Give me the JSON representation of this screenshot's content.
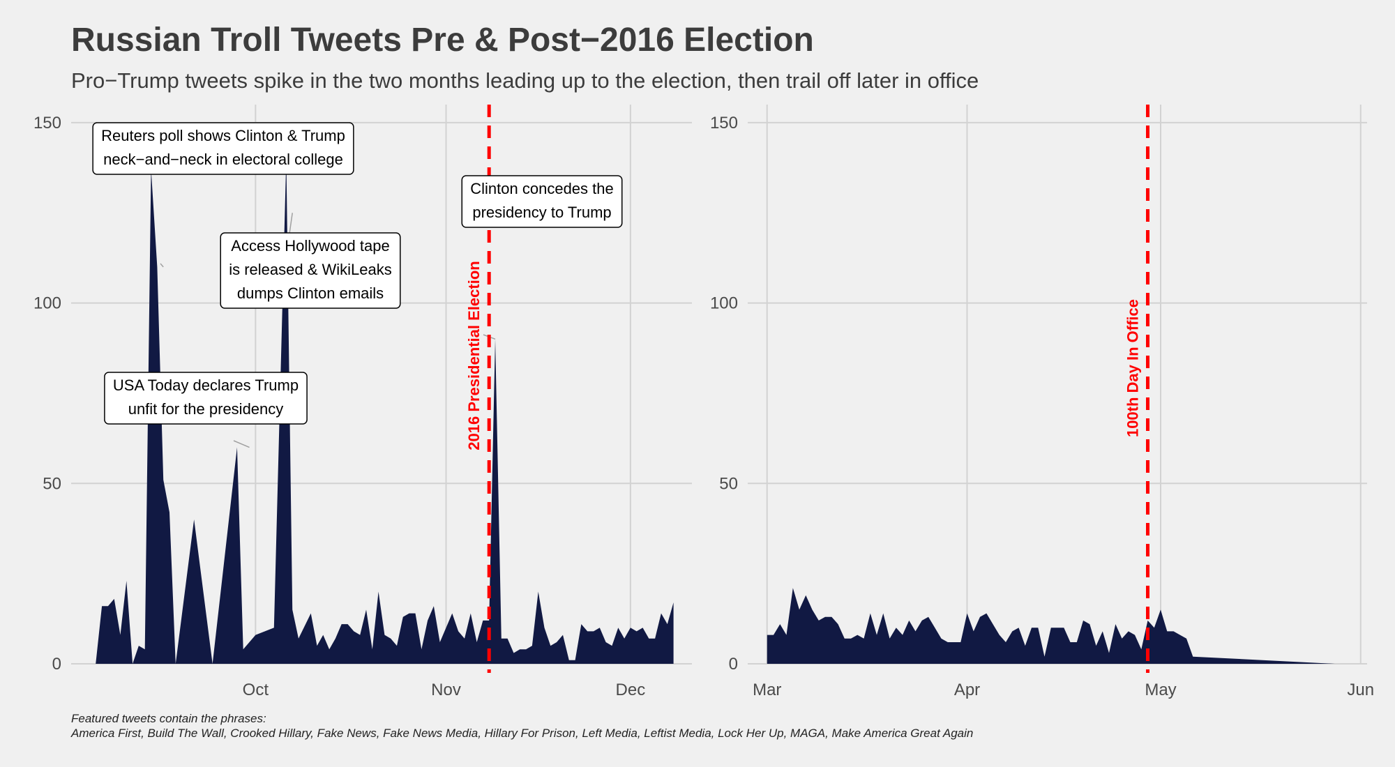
{
  "chart": {
    "title": "Russian Troll Tweets Pre & Post−2016 Election",
    "subtitle": "Pro−Trump tweets spike in the two months leading up to the election, then trail off later in office",
    "caption_line1": "Featured tweets contain the phrases:",
    "caption_line2": "America First, Build The Wall, Crooked Hillary, Fake News, Fake News Media, Hillary For Prison, Left Media, Leftist Media, Lock Her Up, MAGA, Make America Great Again",
    "colors": {
      "area": "#111943",
      "vline": "#ff0000",
      "grid": "#d2d2d2",
      "background": "#f0f0f0"
    }
  },
  "chart_data": [
    {
      "type": "area",
      "panel": "left",
      "x_type": "date",
      "xlim": [
        "2016-09-01",
        "2016-12-11"
      ],
      "ylim": [
        0,
        155
      ],
      "y_ticks": [
        0,
        50,
        100,
        150
      ],
      "x_ticks": [
        {
          "date": "2016-10-01",
          "label": "Oct"
        },
        {
          "date": "2016-11-01",
          "label": "Nov"
        },
        {
          "date": "2016-12-01",
          "label": "Dec"
        }
      ],
      "grid": true,
      "vlines": [
        {
          "date": "2016-11-08",
          "label": "2016 Presidential Election"
        }
      ],
      "annotations": [
        {
          "date": "2016-09-16",
          "y": 110,
          "lines": [
            "Reuters poll shows Clinton & Trump",
            "neck−and−neck in electoral college"
          ]
        },
        {
          "date": "2016-10-07",
          "y": 125,
          "lines": [
            "Access Hollywood tape",
            "is released & WikiLeaks",
            "dumps Clinton emails"
          ]
        },
        {
          "date": "2016-09-30",
          "y": 60,
          "lines": [
            "USA Today declares Trump",
            "unfit for the presidency"
          ]
        },
        {
          "date": "2016-11-09",
          "y": 90,
          "lines": [
            "Clinton concedes the",
            "presidency to Trump"
          ]
        }
      ],
      "points": [
        [
          "2016-09-05",
          0
        ],
        [
          "2016-09-06",
          16
        ],
        [
          "2016-09-07",
          16
        ],
        [
          "2016-09-08",
          18
        ],
        [
          "2016-09-09",
          8
        ],
        [
          "2016-09-10",
          23
        ],
        [
          "2016-09-11",
          0
        ],
        [
          "2016-09-12",
          5
        ],
        [
          "2016-09-13",
          4
        ],
        [
          "2016-09-14",
          137
        ],
        [
          "2016-09-15",
          110
        ],
        [
          "2016-09-16",
          51
        ],
        [
          "2016-09-17",
          42
        ],
        [
          "2016-09-18",
          0
        ],
        [
          "2016-09-21",
          40
        ],
        [
          "2016-09-24",
          0
        ],
        [
          "2016-09-28",
          60
        ],
        [
          "2016-09-29",
          4
        ],
        [
          "2016-10-01",
          8
        ],
        [
          "2016-10-04",
          10
        ],
        [
          "2016-10-06",
          140
        ],
        [
          "2016-10-07",
          15
        ],
        [
          "2016-10-08",
          7
        ],
        [
          "2016-10-10",
          14
        ],
        [
          "2016-10-11",
          5
        ],
        [
          "2016-10-12",
          8
        ],
        [
          "2016-10-13",
          4
        ],
        [
          "2016-10-14",
          7
        ],
        [
          "2016-10-15",
          11
        ],
        [
          "2016-10-16",
          11
        ],
        [
          "2016-10-17",
          9
        ],
        [
          "2016-10-18",
          8
        ],
        [
          "2016-10-19",
          15
        ],
        [
          "2016-10-20",
          4
        ],
        [
          "2016-10-21",
          20
        ],
        [
          "2016-10-22",
          8
        ],
        [
          "2016-10-23",
          7
        ],
        [
          "2016-10-24",
          5
        ],
        [
          "2016-10-25",
          13
        ],
        [
          "2016-10-26",
          14
        ],
        [
          "2016-10-27",
          14
        ],
        [
          "2016-10-28",
          4
        ],
        [
          "2016-10-29",
          12
        ],
        [
          "2016-10-30",
          16
        ],
        [
          "2016-10-31",
          6
        ],
        [
          "2016-11-01",
          10
        ],
        [
          "2016-11-02",
          14
        ],
        [
          "2016-11-03",
          9
        ],
        [
          "2016-11-04",
          7
        ],
        [
          "2016-11-05",
          14
        ],
        [
          "2016-11-06",
          6
        ],
        [
          "2016-11-07",
          12
        ],
        [
          "2016-11-08",
          12
        ],
        [
          "2016-11-09",
          90
        ],
        [
          "2016-11-10",
          7
        ],
        [
          "2016-11-11",
          7
        ],
        [
          "2016-11-12",
          3
        ],
        [
          "2016-11-13",
          4
        ],
        [
          "2016-11-14",
          4
        ],
        [
          "2016-11-15",
          5
        ],
        [
          "2016-11-16",
          20
        ],
        [
          "2016-11-17",
          10
        ],
        [
          "2016-11-18",
          5
        ],
        [
          "2016-11-19",
          6
        ],
        [
          "2016-11-20",
          8
        ],
        [
          "2016-11-21",
          1
        ],
        [
          "2016-11-22",
          1
        ],
        [
          "2016-11-23",
          11
        ],
        [
          "2016-11-24",
          9
        ],
        [
          "2016-11-25",
          9
        ],
        [
          "2016-11-26",
          10
        ],
        [
          "2016-11-27",
          6
        ],
        [
          "2016-11-28",
          5
        ],
        [
          "2016-11-29",
          10
        ],
        [
          "2016-11-30",
          7
        ],
        [
          "2016-12-01",
          10
        ],
        [
          "2016-12-02",
          9
        ],
        [
          "2016-12-03",
          10
        ],
        [
          "2016-12-04",
          7
        ],
        [
          "2016-12-05",
          7
        ],
        [
          "2016-12-06",
          14
        ],
        [
          "2016-12-07",
          11
        ],
        [
          "2016-12-08",
          17
        ]
      ]
    },
    {
      "type": "area",
      "panel": "right",
      "x_type": "date",
      "xlim": [
        "2017-02-26",
        "2017-06-02"
      ],
      "ylim": [
        0,
        155
      ],
      "y_ticks": [
        0,
        50,
        100,
        150
      ],
      "x_ticks": [
        {
          "date": "2017-03-01",
          "label": "Mar"
        },
        {
          "date": "2017-04-01",
          "label": "Apr"
        },
        {
          "date": "2017-05-01",
          "label": "May"
        },
        {
          "date": "2017-06-01",
          "label": "Jun"
        }
      ],
      "grid": true,
      "vlines": [
        {
          "date": "2017-04-29",
          "label": "100th Day In Office"
        }
      ],
      "annotations": [],
      "points": [
        [
          "2017-03-01",
          8
        ],
        [
          "2017-03-02",
          8
        ],
        [
          "2017-03-03",
          11
        ],
        [
          "2017-03-04",
          8
        ],
        [
          "2017-03-05",
          21
        ],
        [
          "2017-03-06",
          15
        ],
        [
          "2017-03-07",
          19
        ],
        [
          "2017-03-08",
          15
        ],
        [
          "2017-03-09",
          12
        ],
        [
          "2017-03-10",
          13
        ],
        [
          "2017-03-11",
          13
        ],
        [
          "2017-03-12",
          11
        ],
        [
          "2017-03-13",
          7
        ],
        [
          "2017-03-14",
          7
        ],
        [
          "2017-03-15",
          8
        ],
        [
          "2017-03-16",
          7
        ],
        [
          "2017-03-17",
          14
        ],
        [
          "2017-03-18",
          8
        ],
        [
          "2017-03-19",
          14
        ],
        [
          "2017-03-20",
          7
        ],
        [
          "2017-03-21",
          10
        ],
        [
          "2017-03-22",
          8
        ],
        [
          "2017-03-23",
          12
        ],
        [
          "2017-03-24",
          9
        ],
        [
          "2017-03-25",
          12
        ],
        [
          "2017-03-26",
          13
        ],
        [
          "2017-03-27",
          10
        ],
        [
          "2017-03-28",
          7
        ],
        [
          "2017-03-29",
          6
        ],
        [
          "2017-03-30",
          6
        ],
        [
          "2017-03-31",
          6
        ],
        [
          "2017-04-01",
          14
        ],
        [
          "2017-04-02",
          9
        ],
        [
          "2017-04-03",
          13
        ],
        [
          "2017-04-04",
          14
        ],
        [
          "2017-04-05",
          11
        ],
        [
          "2017-04-06",
          8
        ],
        [
          "2017-04-07",
          6
        ],
        [
          "2017-04-08",
          9
        ],
        [
          "2017-04-09",
          10
        ],
        [
          "2017-04-10",
          5
        ],
        [
          "2017-04-11",
          10
        ],
        [
          "2017-04-12",
          10
        ],
        [
          "2017-04-13",
          2
        ],
        [
          "2017-04-14",
          10
        ],
        [
          "2017-04-15",
          10
        ],
        [
          "2017-04-16",
          10
        ],
        [
          "2017-04-17",
          6
        ],
        [
          "2017-04-18",
          6
        ],
        [
          "2017-04-19",
          12
        ],
        [
          "2017-04-20",
          11
        ],
        [
          "2017-04-21",
          5
        ],
        [
          "2017-04-22",
          9
        ],
        [
          "2017-04-23",
          3
        ],
        [
          "2017-04-24",
          11
        ],
        [
          "2017-04-25",
          7
        ],
        [
          "2017-04-26",
          9
        ],
        [
          "2017-04-27",
          8
        ],
        [
          "2017-04-28",
          4
        ],
        [
          "2017-04-29",
          12
        ],
        [
          "2017-04-30",
          10
        ],
        [
          "2017-05-01",
          15
        ],
        [
          "2017-05-02",
          9
        ],
        [
          "2017-05-03",
          9
        ],
        [
          "2017-05-04",
          8
        ],
        [
          "2017-05-05",
          7
        ],
        [
          "2017-05-06",
          2
        ],
        [
          "2017-05-28",
          0
        ]
      ]
    }
  ]
}
